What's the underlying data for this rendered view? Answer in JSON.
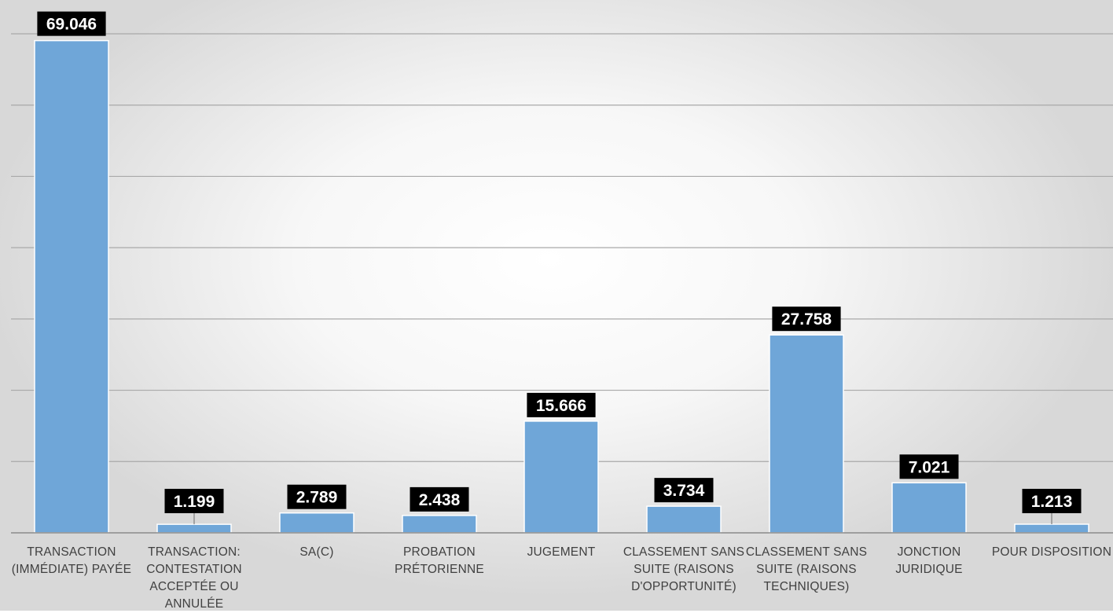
{
  "chart_data": {
    "type": "bar",
    "categories": [
      "TRANSACTION (IMMÉDIATE) PAYÉE",
      "TRANSACTION: CONTESTATION ACCEPTÉE OU ANNULÉE",
      "SA(C)",
      "PROBATION PRÉTORIENNE",
      "JUGEMENT",
      "CLASSEMENT SANS SUITE (RAISONS D'OPPORTUNITÉ)",
      "CLASSEMENT SANS SUITE (RAISONS TECHNIQUES)",
      "JONCTION JURIDIQUE",
      "POUR DISPOSITION"
    ],
    "values": [
      69046,
      1199,
      2789,
      2438,
      15666,
      3734,
      27758,
      7021,
      1213
    ],
    "data_labels": [
      "69.046",
      "1.199",
      "2.789",
      "2.438",
      "15.666",
      "3.734",
      "27.758",
      "7.021",
      "1.213"
    ],
    "ylim": [
      0,
      70000
    ],
    "grid": true,
    "legend": "none",
    "title": "",
    "xlabel": "",
    "ylabel": "",
    "colors": {
      "bar": "#6fa6d8",
      "label_bg": "#000000",
      "label_text": "#ffffff",
      "axis_text": "#404040",
      "grid": "#a9a9a9"
    }
  }
}
